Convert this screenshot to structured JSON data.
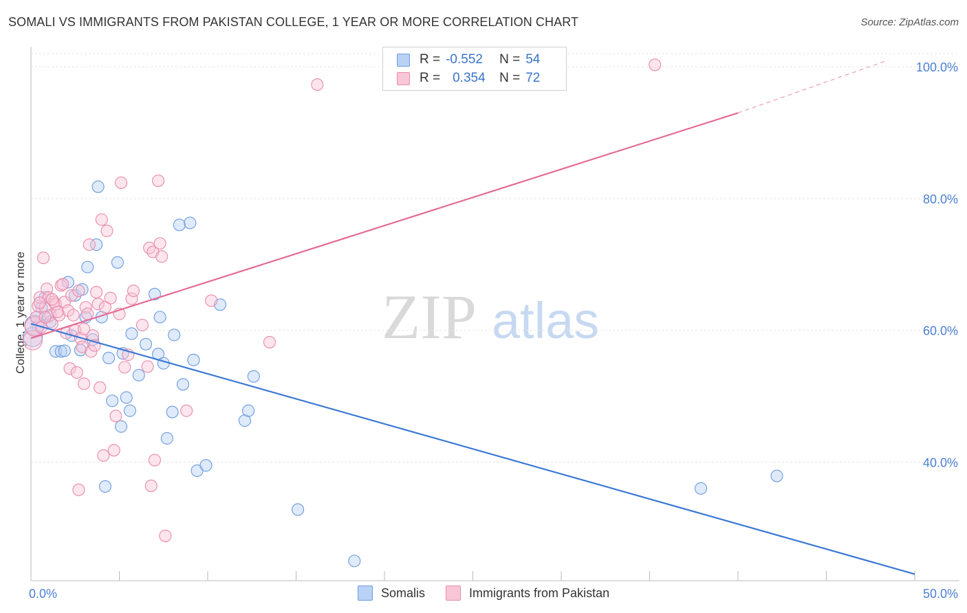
{
  "title": "SOMALI VS IMMIGRANTS FROM PAKISTAN COLLEGE, 1 YEAR OR MORE CORRELATION CHART",
  "source": "Source: ZipAtlas.com",
  "watermark": {
    "zip": "ZIP",
    "atlas": "atlas"
  },
  "legend_top": {
    "r_label": "R =",
    "n_label": "N =",
    "rows": [
      {
        "name": "Somalis",
        "r": "-0.552",
        "n": "54",
        "fill": "#b9d1f5",
        "stroke": "#6a9be0"
      },
      {
        "name": "Immigrants from Pakistan",
        "r": "0.354",
        "n": "72",
        "fill": "#f8c6d6",
        "stroke": "#e88aaa"
      }
    ]
  },
  "legend_bottom": [
    "Somalis",
    "Immigrants from Pakistan"
  ],
  "chart_data": {
    "type": "scatter",
    "title": "SOMALI VS IMMIGRANTS FROM PAKISTAN COLLEGE, 1 YEAR OR MORE CORRELATION CHART",
    "xlabel": "",
    "ylabel": "College, 1 year or more",
    "xlim": [
      0,
      50
    ],
    "ylim": [
      22,
      102
    ],
    "x_tick_labels": [
      "0.0%",
      "50.0%"
    ],
    "y_ticks": [
      40,
      60,
      80,
      100
    ],
    "y_tick_labels": [
      "40.0%",
      "60.0%",
      "80.0%",
      "100.0%"
    ],
    "colors": {
      "somali": "#3a78d4",
      "pakistan": "#e46a95"
    },
    "series": [
      {
        "name": "Somalis",
        "trend": {
          "x0": 0,
          "y0": 61,
          "x1": 50,
          "y1": 23
        },
        "points": [
          [
            0.1,
            59
          ],
          [
            0.3,
            62
          ],
          [
            0.4,
            60.7
          ],
          [
            0.6,
            63.5
          ],
          [
            0.8,
            65
          ],
          [
            1.0,
            62.1
          ],
          [
            1.1,
            61.3
          ],
          [
            1.4,
            56.8
          ],
          [
            1.7,
            56.8
          ],
          [
            1.9,
            56.9
          ],
          [
            2.1,
            67.3
          ],
          [
            2.3,
            59.2
          ],
          [
            2.5,
            65.3
          ],
          [
            2.8,
            57
          ],
          [
            2.9,
            66.2
          ],
          [
            3.1,
            62
          ],
          [
            3.2,
            69.6
          ],
          [
            3.5,
            58.6
          ],
          [
            3.7,
            73
          ],
          [
            3.8,
            81.8
          ],
          [
            4.0,
            62
          ],
          [
            4.2,
            36.3
          ],
          [
            4.4,
            55.8
          ],
          [
            4.6,
            49.3
          ],
          [
            4.9,
            70.3
          ],
          [
            5.1,
            45.4
          ],
          [
            5.2,
            56.5
          ],
          [
            5.4,
            49.8
          ],
          [
            5.6,
            47.8
          ],
          [
            5.7,
            59.5
          ],
          [
            6.1,
            53.2
          ],
          [
            6.5,
            57.9
          ],
          [
            7.0,
            65.5
          ],
          [
            7.2,
            56.4
          ],
          [
            7.3,
            62
          ],
          [
            7.5,
            55
          ],
          [
            7.7,
            43.6
          ],
          [
            8.0,
            47.6
          ],
          [
            8.1,
            59.3
          ],
          [
            8.4,
            76
          ],
          [
            8.6,
            51.8
          ],
          [
            9.0,
            76.3
          ],
          [
            9.2,
            55.5
          ],
          [
            9.4,
            38.7
          ],
          [
            9.9,
            39.5
          ],
          [
            10.7,
            63.9
          ],
          [
            12.1,
            46.3
          ],
          [
            12.3,
            47.8
          ],
          [
            12.6,
            53
          ],
          [
            15.1,
            32.8
          ],
          [
            18.3,
            25
          ],
          [
            37.9,
            36
          ],
          [
            42.2,
            37.9
          ],
          [
            0.2,
            60.8
          ]
        ]
      },
      {
        "name": "Immigrants from Pakistan",
        "trend": {
          "x0": 0,
          "y0": 58.8,
          "x1": 40,
          "y1": 93,
          "dash_x1": 48.5,
          "dash_y1": 101
        },
        "points": [
          [
            0.1,
            58.5
          ],
          [
            0.2,
            60.6
          ],
          [
            0.3,
            62
          ],
          [
            0.4,
            63.7
          ],
          [
            0.5,
            65
          ],
          [
            0.6,
            60.5
          ],
          [
            0.7,
            71
          ],
          [
            0.8,
            63.5
          ],
          [
            0.9,
            66.3
          ],
          [
            1.0,
            65
          ],
          [
            1.1,
            62.3
          ],
          [
            1.2,
            61
          ],
          [
            1.3,
            64.3
          ],
          [
            1.4,
            64
          ],
          [
            1.6,
            62.3
          ],
          [
            1.7,
            66.8
          ],
          [
            1.8,
            67
          ],
          [
            1.9,
            64.3
          ],
          [
            2.0,
            59.6
          ],
          [
            2.1,
            63
          ],
          [
            2.2,
            54.2
          ],
          [
            2.3,
            65.3
          ],
          [
            2.5,
            60
          ],
          [
            2.6,
            53.6
          ],
          [
            2.7,
            66
          ],
          [
            2.8,
            58.8
          ],
          [
            2.9,
            57.5
          ],
          [
            3.0,
            51.9
          ],
          [
            3.1,
            63.5
          ],
          [
            3.2,
            62.5
          ],
          [
            3.3,
            73
          ],
          [
            3.4,
            56.8
          ],
          [
            3.5,
            59.2
          ],
          [
            3.6,
            57.7
          ],
          [
            3.7,
            65.8
          ],
          [
            3.8,
            64
          ],
          [
            3.9,
            51.3
          ],
          [
            4.0,
            76.8
          ],
          [
            4.1,
            41
          ],
          [
            4.2,
            63.5
          ],
          [
            4.3,
            75.1
          ],
          [
            4.5,
            64.9
          ],
          [
            4.7,
            41.8
          ],
          [
            4.8,
            47
          ],
          [
            5.0,
            62.5
          ],
          [
            5.1,
            82.4
          ],
          [
            5.3,
            54.4
          ],
          [
            5.5,
            56.3
          ],
          [
            5.7,
            64.8
          ],
          [
            5.8,
            66
          ],
          [
            6.3,
            60.8
          ],
          [
            6.6,
            54.5
          ],
          [
            6.7,
            72.5
          ],
          [
            6.8,
            36.4
          ],
          [
            6.9,
            71.9
          ],
          [
            7.0,
            40.3
          ],
          [
            7.3,
            73.2
          ],
          [
            7.4,
            71.2
          ],
          [
            7.6,
            28.8
          ],
          [
            7.2,
            82.7
          ],
          [
            8.8,
            47.8
          ],
          [
            10.2,
            64.5
          ],
          [
            13.5,
            58.2
          ],
          [
            16.2,
            97.3
          ],
          [
            35.3,
            100.3
          ],
          [
            2.7,
            35.8
          ],
          [
            0.5,
            64.2
          ],
          [
            1.5,
            62.8
          ],
          [
            2.4,
            62.3
          ],
          [
            3.0,
            60.2
          ],
          [
            1.2,
            64.7
          ],
          [
            0.8,
            62
          ]
        ]
      }
    ]
  }
}
